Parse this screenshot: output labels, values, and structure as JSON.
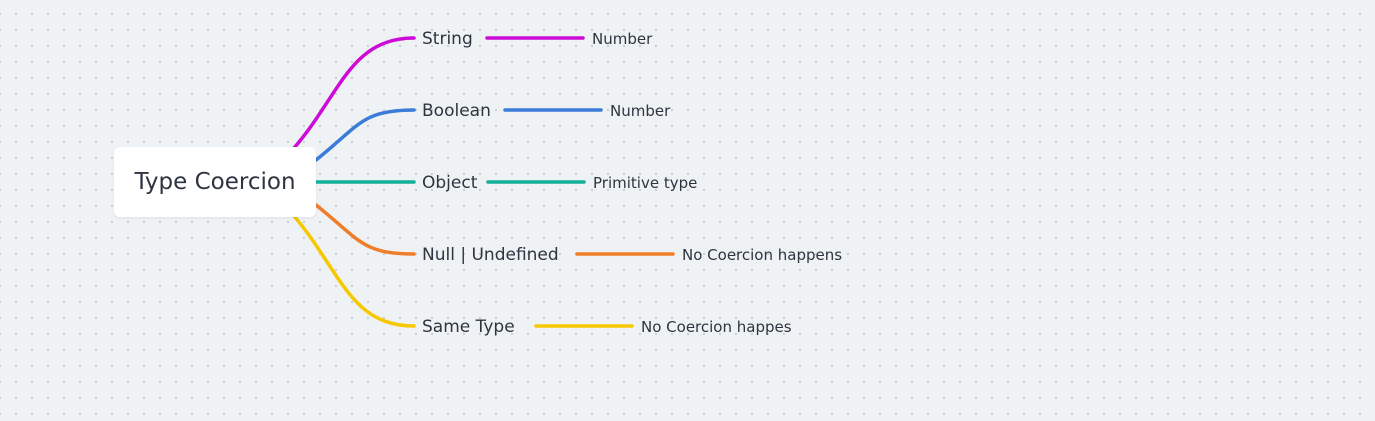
{
  "root": {
    "label": "Type Coercion"
  },
  "branches": [
    {
      "topic": "String",
      "result": "Number",
      "color": "#cc0cd6"
    },
    {
      "topic": "Boolean",
      "result": "Number",
      "color": "#3b7bd9"
    },
    {
      "topic": "Object",
      "result": "Primitive type",
      "color": "#14b09a"
    },
    {
      "topic": "Null | Undefined",
      "result": "No Coercion happens",
      "color": "#f07d2a"
    },
    {
      "topic": "Same Type",
      "result": "No Coercion happes",
      "color": "#f5c800"
    }
  ]
}
